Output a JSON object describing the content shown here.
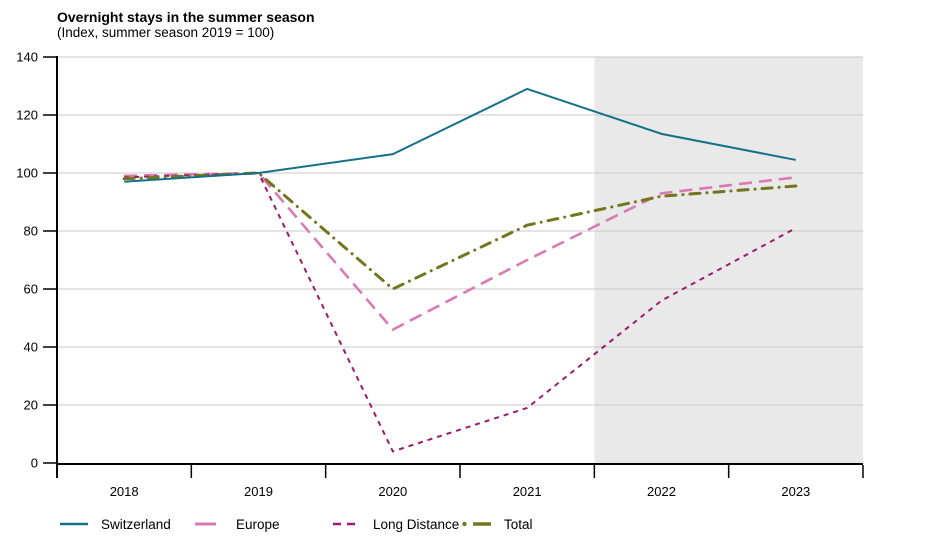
{
  "chart_data": {
    "type": "line",
    "title": "Overnight stays in the summer season",
    "subtitle": "(Index, summer season 2019 = 100)",
    "categories": [
      "2018",
      "2019",
      "2020",
      "2021",
      "2022",
      "2023"
    ],
    "y_ticks": [
      0,
      20,
      40,
      60,
      80,
      100,
      120,
      140
    ],
    "ylim": [
      0,
      140
    ],
    "grid_on": true,
    "legend_position": "bottom",
    "series": [
      {
        "name": "Switzerland",
        "style": "solid",
        "color": "#15718a",
        "values": [
          97,
          100,
          106.5,
          129,
          113.5,
          104.5
        ]
      },
      {
        "name": "Europe",
        "style": "long-dash",
        "color": "#d97ab5",
        "values": [
          99,
          100,
          46,
          70,
          93,
          98.5
        ]
      },
      {
        "name": "Long Distance",
        "style": "short-dash",
        "color": "#9d1a6e",
        "values": [
          98.5,
          100,
          4,
          19,
          56,
          81
        ]
      },
      {
        "name": "Total",
        "style": "dash-dot",
        "color": "#74751c",
        "values": [
          98,
          100,
          60,
          82,
          92,
          95.5
        ]
      }
    ],
    "forecast_region": {
      "from_category": "2022",
      "to_category": "2023",
      "color": "#e9e9e9"
    },
    "grid_color": "#c9c9c9",
    "axis_color": "#000000"
  }
}
